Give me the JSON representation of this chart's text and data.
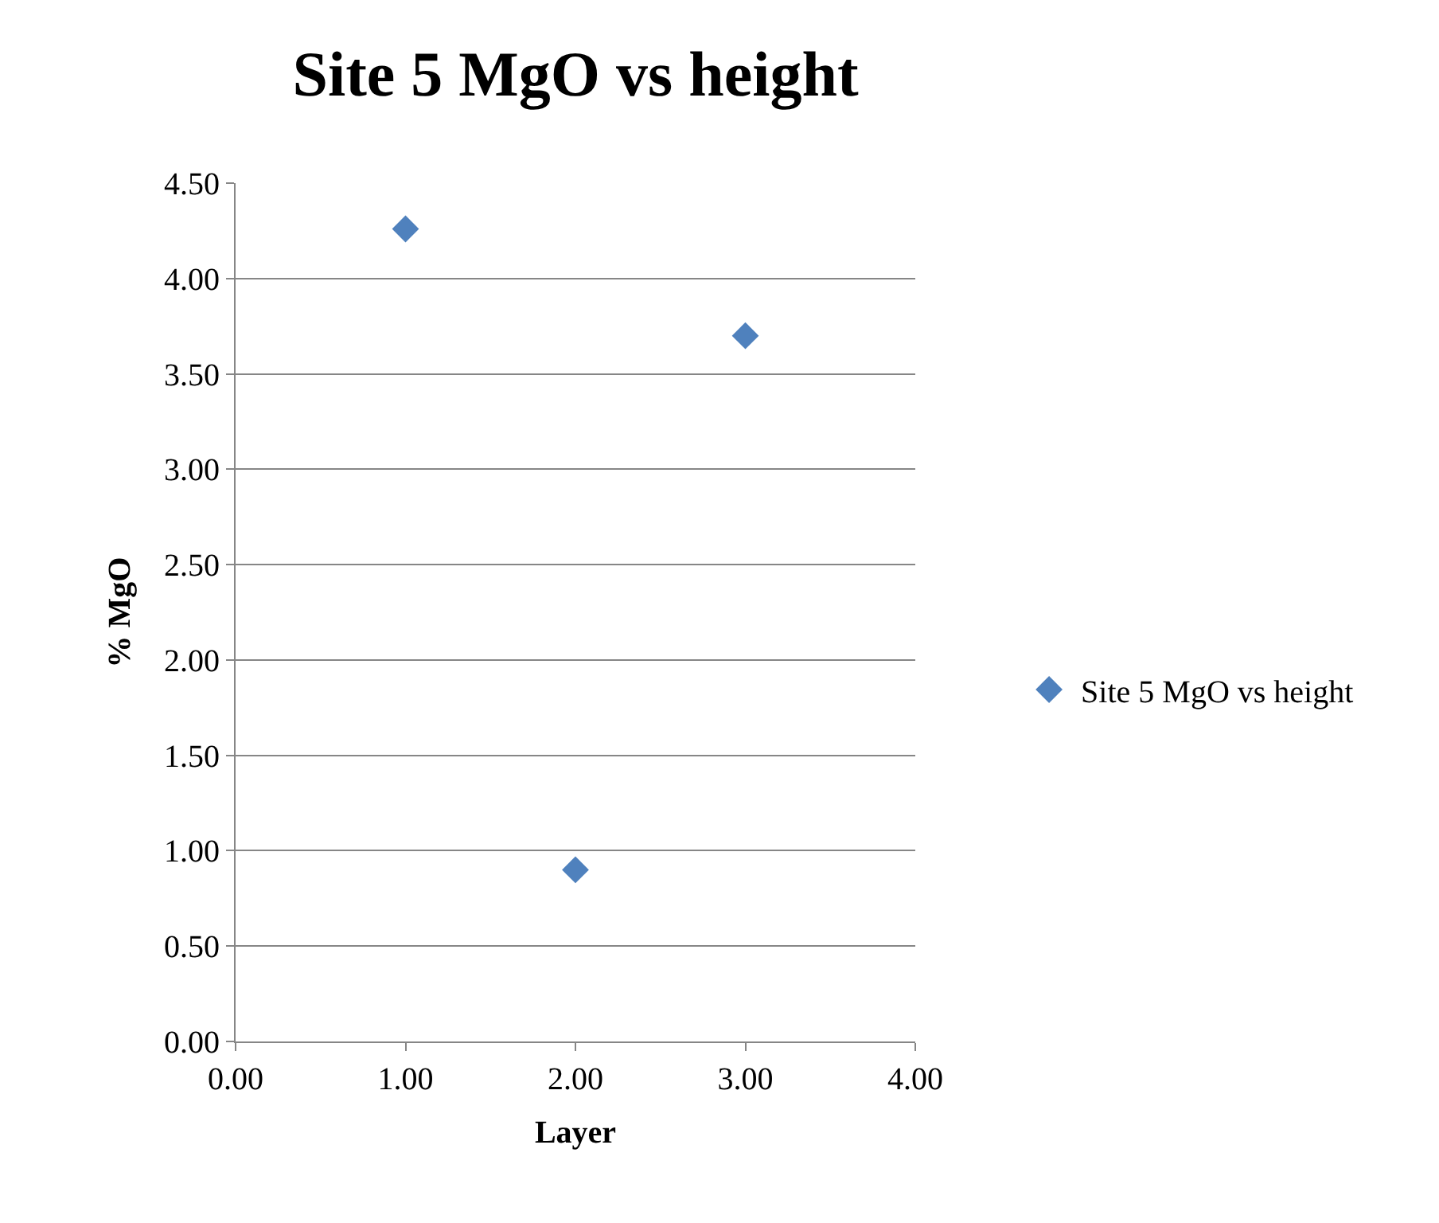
{
  "chart_data": {
    "type": "scatter",
    "title": "Site 5 MgO vs height",
    "xlabel": "Layer",
    "ylabel": "% MgO",
    "x": [
      1,
      2,
      3
    ],
    "series": [
      {
        "name": "Site 5 MgO vs height",
        "color": "#4f81bd",
        "values": [
          4.26,
          0.9,
          3.7
        ]
      }
    ],
    "xlim": [
      0,
      4
    ],
    "xticks": [
      {
        "value": 0,
        "label": "0.00"
      },
      {
        "value": 1,
        "label": "1.00"
      },
      {
        "value": 2,
        "label": "2.00"
      },
      {
        "value": 3,
        "label": "3.00"
      },
      {
        "value": 4,
        "label": "4.00"
      }
    ],
    "ylim": [
      0,
      4.5
    ],
    "yticks": [
      {
        "value": 0,
        "label": "0.00"
      },
      {
        "value": 0.5,
        "label": "0.50"
      },
      {
        "value": 1,
        "label": "1.00"
      },
      {
        "value": 1.5,
        "label": "1.50"
      },
      {
        "value": 2,
        "label": "2.00"
      },
      {
        "value": 2.5,
        "label": "2.50"
      },
      {
        "value": 3,
        "label": "3.00"
      },
      {
        "value": 3.5,
        "label": "3.50"
      },
      {
        "value": 4,
        "label": "4.00"
      },
      {
        "value": 4.5,
        "label": "4.50"
      }
    ],
    "grid": "y",
    "legend": "right",
    "marker": "diamond"
  }
}
